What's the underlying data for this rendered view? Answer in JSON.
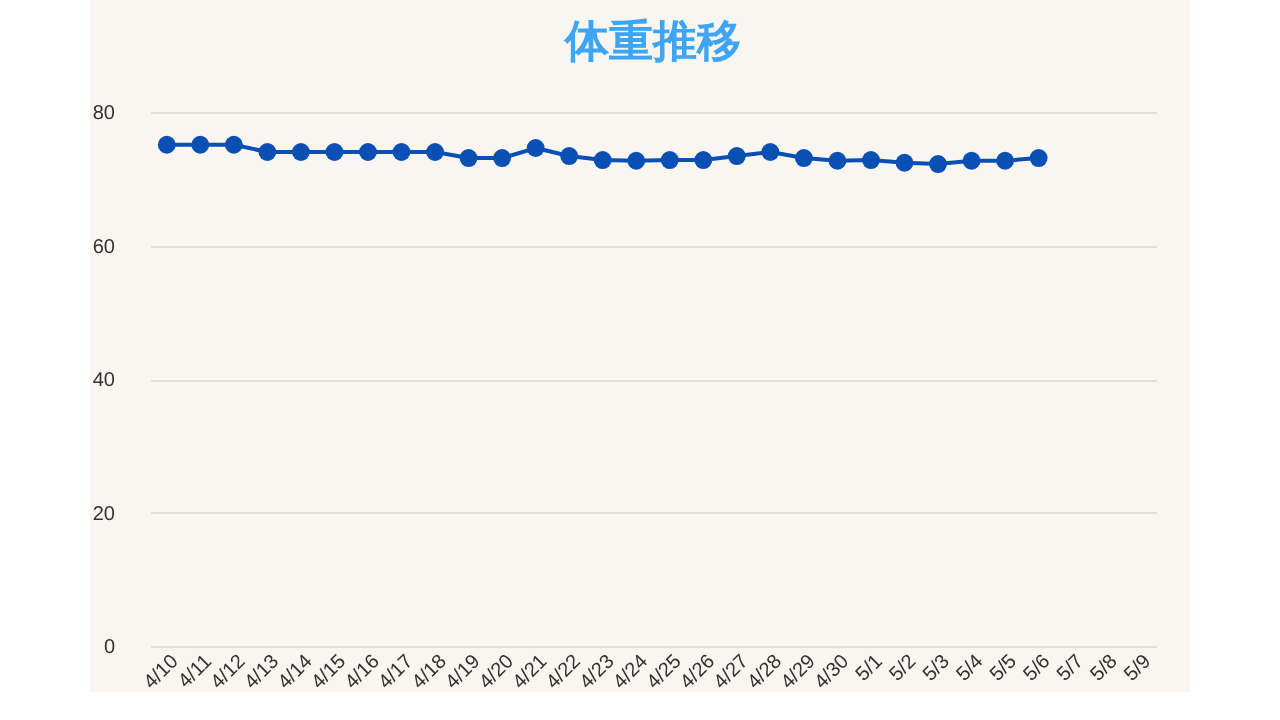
{
  "chart_data": {
    "type": "line",
    "title": "体重推移",
    "categories": [
      "4/10",
      "4/11",
      "4/12",
      "4/13",
      "4/14",
      "4/15",
      "4/16",
      "4/17",
      "4/18",
      "4/19",
      "4/20",
      "4/21",
      "4/22",
      "4/23",
      "4/24",
      "4/25",
      "4/26",
      "4/27",
      "4/28",
      "4/29",
      "4/30",
      "5/1",
      "5/2",
      "5/3",
      "5/4",
      "5/5",
      "5/6",
      "5/7",
      "5/8",
      "5/9"
    ],
    "series": [
      {
        "color": "#0a4fb4",
        "values": [
          75.1,
          75.1,
          75.1,
          74.0,
          74.0,
          74.0,
          74.0,
          74.0,
          74.0,
          73.1,
          73.1,
          74.6,
          73.4,
          72.8,
          72.7,
          72.8,
          72.8,
          73.4,
          74.0,
          73.1,
          72.7,
          72.8,
          72.4,
          72.2,
          72.7,
          72.7,
          73.1,
          null,
          null,
          null
        ]
      }
    ],
    "ylim": [
      0,
      80
    ],
    "yticks": [
      0,
      20,
      40,
      60,
      80
    ],
    "grid": "y",
    "marker": "circle"
  }
}
